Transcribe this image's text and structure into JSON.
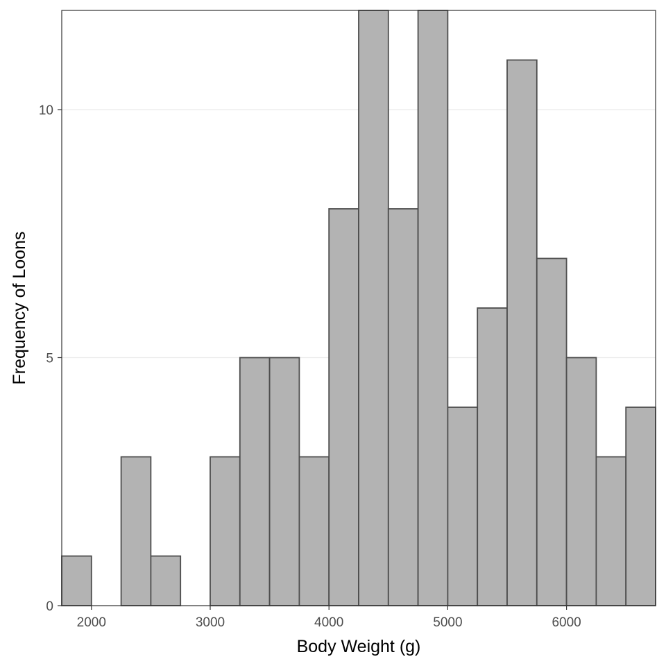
{
  "chart_data": {
    "type": "bar",
    "subtype": "histogram",
    "title": "",
    "xlabel": "Body Weight (g)",
    "ylabel": "Frequency of Loons",
    "xlim": [
      1750,
      6750
    ],
    "ylim": [
      0,
      12.0
    ],
    "x_ticks": [
      2000,
      3000,
      4000,
      5000,
      6000
    ],
    "y_ticks": [
      0,
      5,
      10
    ],
    "grid": "horizontal",
    "bin_width": 250,
    "bins": [
      {
        "start": 1750,
        "end": 2000,
        "count": 1
      },
      {
        "start": 2000,
        "end": 2250,
        "count": 0
      },
      {
        "start": 2250,
        "end": 2500,
        "count": 3
      },
      {
        "start": 2500,
        "end": 2750,
        "count": 1
      },
      {
        "start": 2750,
        "end": 3000,
        "count": 0
      },
      {
        "start": 3000,
        "end": 3250,
        "count": 3
      },
      {
        "start": 3250,
        "end": 3500,
        "count": 5
      },
      {
        "start": 3500,
        "end": 3750,
        "count": 5
      },
      {
        "start": 3750,
        "end": 4000,
        "count": 3
      },
      {
        "start": 4000,
        "end": 4250,
        "count": 8
      },
      {
        "start": 4250,
        "end": 4500,
        "count": 12
      },
      {
        "start": 4500,
        "end": 4750,
        "count": 8
      },
      {
        "start": 4750,
        "end": 5000,
        "count": 12
      },
      {
        "start": 5000,
        "end": 5250,
        "count": 4
      },
      {
        "start": 5250,
        "end": 5500,
        "count": 6
      },
      {
        "start": 5500,
        "end": 5750,
        "count": 11
      },
      {
        "start": 5750,
        "end": 6000,
        "count": 7
      },
      {
        "start": 6000,
        "end": 6250,
        "count": 5
      },
      {
        "start": 6250,
        "end": 6500,
        "count": 3
      },
      {
        "start": 6500,
        "end": 6750,
        "count": 4
      }
    ],
    "colors": {
      "bar_fill": "#b3b3b3",
      "bar_stroke": "#4d4d4d",
      "grid": "#ebebeb",
      "panel_border": "#333333"
    }
  }
}
